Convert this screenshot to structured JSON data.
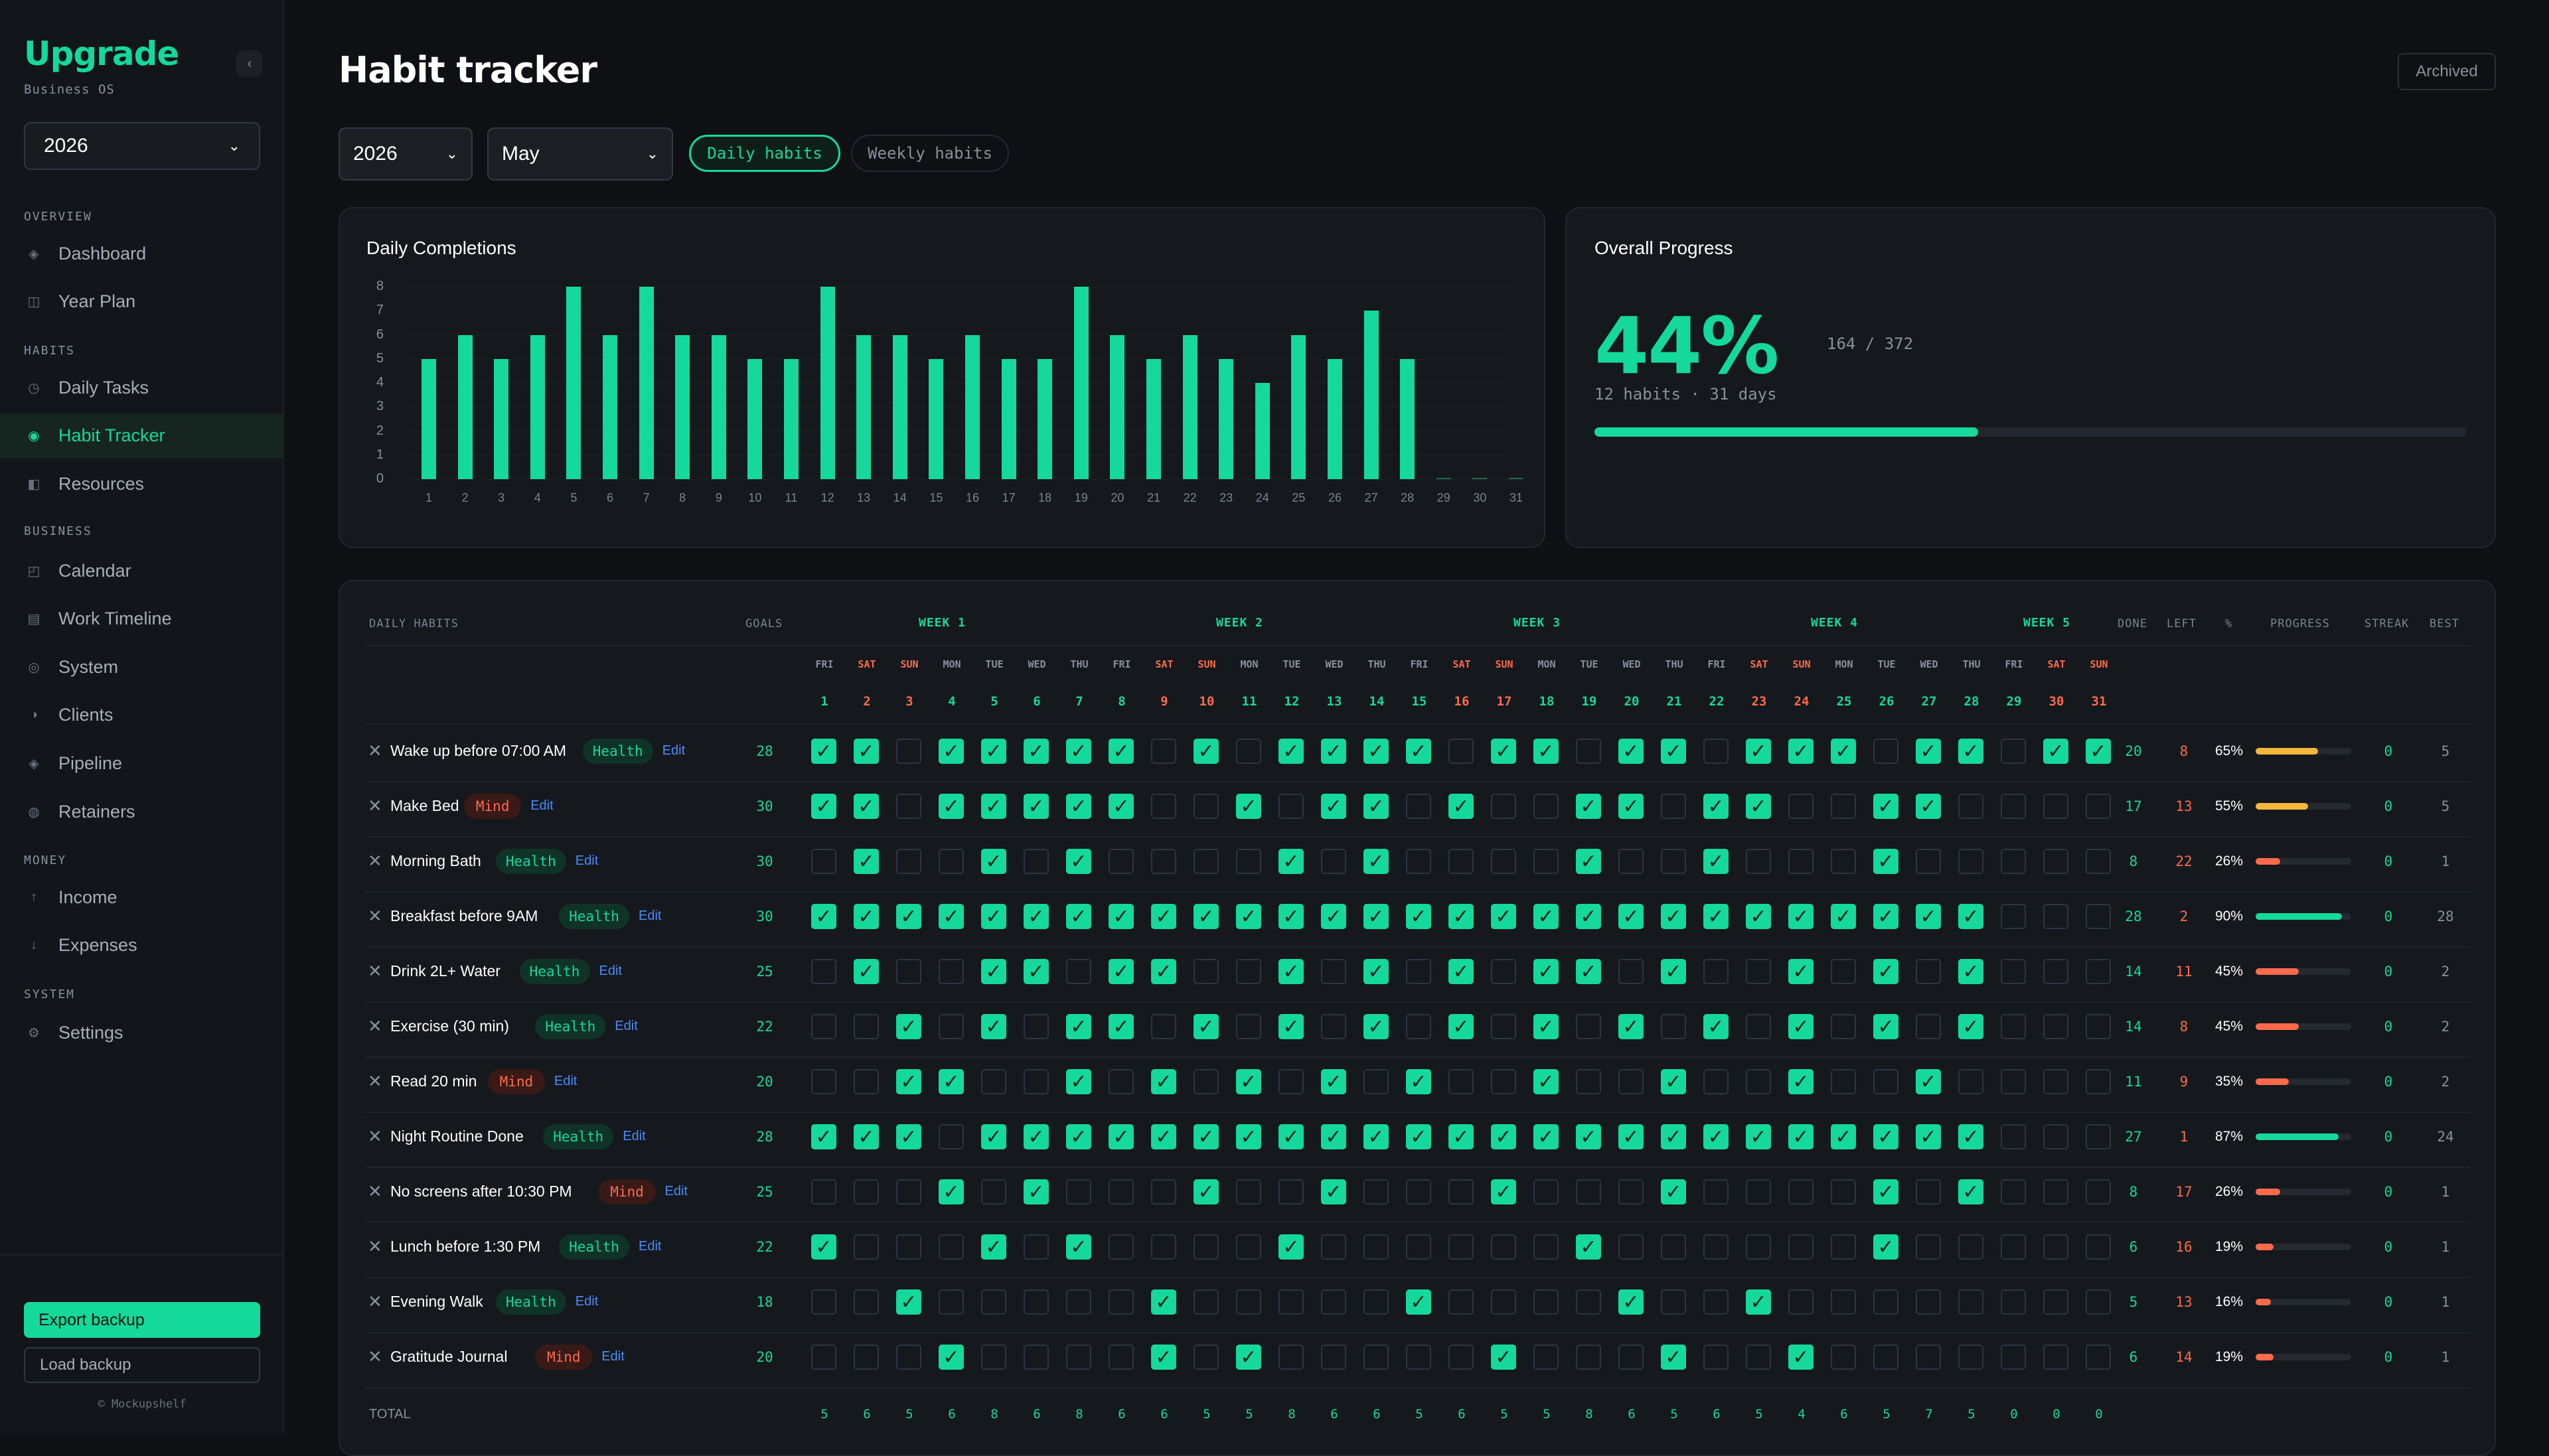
{
  "sidebar": {
    "logo": "Upgrade",
    "subtitle": "Business OS",
    "year": "2026",
    "sections": [
      {
        "title": "OVERVIEW",
        "items": [
          {
            "label": "Dashboard",
            "icon": "diamond-icon"
          },
          {
            "label": "Year Plan",
            "icon": "calendar-grid-icon"
          }
        ]
      },
      {
        "title": "HABITS",
        "items": [
          {
            "label": "Daily Tasks",
            "icon": "clock-icon"
          },
          {
            "label": "Habit Tracker",
            "icon": "target-icon",
            "active": true
          },
          {
            "label": "Resources",
            "icon": "book-icon"
          }
        ]
      },
      {
        "title": "BUSINESS",
        "items": [
          {
            "label": "Calendar",
            "icon": "calendar-icon"
          },
          {
            "label": "Work Timeline",
            "icon": "list-icon"
          },
          {
            "label": "System",
            "icon": "system-icon"
          },
          {
            "label": "Clients",
            "icon": "half-circle-icon"
          },
          {
            "label": "Pipeline",
            "icon": "pipeline-icon"
          },
          {
            "label": "Retainers",
            "icon": "retainer-icon"
          }
        ]
      },
      {
        "title": "MONEY",
        "items": [
          {
            "label": "Income",
            "icon": "arrow-up-icon"
          },
          {
            "label": "Expenses",
            "icon": "arrow-down-icon"
          }
        ]
      },
      {
        "title": "SYSTEM",
        "items": [
          {
            "label": "Settings",
            "icon": "gear-icon"
          }
        ]
      }
    ],
    "export_label": "Export backup",
    "load_label": "Load backup",
    "copyright": "© Mockupshelf"
  },
  "header": {
    "title": "Habit tracker",
    "archived_label": "Archived",
    "year": "2026",
    "month": "May",
    "tab_daily": "Daily habits",
    "tab_weekly": "Weekly habits"
  },
  "chart_title": "Daily Completions",
  "chart_data": {
    "type": "bar",
    "title": "Daily Completions",
    "categories": [
      "1",
      "2",
      "3",
      "4",
      "5",
      "6",
      "7",
      "8",
      "9",
      "10",
      "11",
      "12",
      "13",
      "14",
      "15",
      "16",
      "17",
      "18",
      "19",
      "20",
      "21",
      "22",
      "23",
      "24",
      "25",
      "26",
      "27",
      "28",
      "29",
      "30",
      "31"
    ],
    "values": [
      5,
      6,
      5,
      6,
      8,
      6,
      8,
      6,
      6,
      5,
      5,
      8,
      6,
      6,
      5,
      6,
      5,
      5,
      8,
      6,
      5,
      6,
      5,
      4,
      6,
      5,
      7,
      5,
      0,
      0,
      0
    ],
    "ylim": [
      0,
      8
    ],
    "yticks": [
      "0",
      "1",
      "2",
      "3",
      "4",
      "5",
      "6",
      "7",
      "8"
    ],
    "grid": true
  },
  "progress": {
    "title": "Overall Progress",
    "percent_label": "44%",
    "percent_value": 0.44,
    "count": "164 / 372",
    "subtitle": "12 habits · 31 days"
  },
  "table": {
    "headers": {
      "habits": "DAILY HABITS",
      "goals": "GOALS",
      "done": "DONE",
      "left": "LEFT",
      "pct": "%",
      "progress": "PROGRESS",
      "streak": "STREAK",
      "best": "BEST"
    },
    "weeks": [
      "WEEK 1",
      "WEEK 2",
      "WEEK 3",
      "WEEK 4",
      "WEEK 5"
    ],
    "dow": [
      "FRI",
      "SAT",
      "SUN",
      "MON",
      "TUE",
      "WED",
      "THU",
      "FRI",
      "SAT",
      "SUN",
      "MON",
      "TUE",
      "WED",
      "THU",
      "FRI",
      "SAT",
      "SUN",
      "MON",
      "TUE",
      "WED",
      "THU",
      "FRI",
      "SAT",
      "SUN",
      "MON",
      "TUE",
      "WED",
      "THU",
      "FRI",
      "SAT",
      "SUN"
    ],
    "days": [
      "1",
      "2",
      "3",
      "4",
      "5",
      "6",
      "7",
      "8",
      "9",
      "10",
      "11",
      "12",
      "13",
      "14",
      "15",
      "16",
      "17",
      "18",
      "19",
      "20",
      "21",
      "22",
      "23",
      "24",
      "25",
      "26",
      "27",
      "28",
      "29",
      "30",
      "31"
    ],
    "edit_label": "Edit",
    "rows": [
      {
        "name": "Wake up before 07:00 AM",
        "tag": "Health",
        "goal": "28",
        "checks": "1101111101011110110110111011011000",
        "done": "20",
        "left": "8",
        "pct": "65%",
        "pct_value": 0.65,
        "bar_color": "#f5b73a",
        "streak": "0",
        "best": "5"
      },
      {
        "name": "Make Bed",
        "tag": "Mind",
        "goal": "30",
        "checks": "1101111100101101001101100110000000",
        "done": "17",
        "left": "13",
        "pct": "55%",
        "pct_value": 0.55,
        "bar_color": "#f5b73a",
        "streak": "0",
        "best": "5"
      },
      {
        "name": "Morning Bath",
        "tag": "Health",
        "goal": "30",
        "checks": "0100101000010100001001000100000000",
        "done": "8",
        "left": "22",
        "pct": "26%",
        "pct_value": 0.26,
        "bar_color": "#ff6b4a",
        "streak": "0",
        "best": "1"
      },
      {
        "name": "Breakfast before 9AM",
        "tag": "Health",
        "goal": "30",
        "checks": "1111111111111111111111111111000000",
        "done": "28",
        "left": "2",
        "pct": "90%",
        "pct_value": 0.9,
        "bar_color": "#14d99a",
        "streak": "0",
        "best": "28"
      },
      {
        "name": "Drink 2L+ Water",
        "tag": "Health",
        "goal": "25",
        "checks": "0100110110010101011010010101000000",
        "done": "14",
        "left": "11",
        "pct": "45%",
        "pct_value": 0.45,
        "bar_color": "#ff6b4a",
        "streak": "0",
        "best": "2"
      },
      {
        "name": "Exercise (30 min)",
        "tag": "Health",
        "goal": "22",
        "checks": "0010101101010101010101010101000000",
        "done": "14",
        "left": "8",
        "pct": "45%",
        "pct_value": 0.45,
        "bar_color": "#ff6b4a",
        "streak": "0",
        "best": "2"
      },
      {
        "name": "Read 20 min",
        "tag": "Mind",
        "goal": "20",
        "checks": "0011001010101010010010010010000000",
        "done": "11",
        "left": "9",
        "pct": "35%",
        "pct_value": 0.35,
        "bar_color": "#ff6b4a",
        "streak": "0",
        "best": "2"
      },
      {
        "name": "Night Routine Done",
        "tag": "Health",
        "goal": "28",
        "checks": "1110111111111111111111111111000000",
        "done": "27",
        "left": "1",
        "pct": "87%",
        "pct_value": 0.87,
        "bar_color": "#14d99a",
        "streak": "0",
        "best": "24"
      },
      {
        "name": "No screens after 10:30 PM",
        "tag": "Mind",
        "goal": "25",
        "checks": "0001010001001000100010000101000000",
        "done": "8",
        "left": "17",
        "pct": "26%",
        "pct_value": 0.26,
        "bar_color": "#ff6b4a",
        "streak": "0",
        "best": "1"
      },
      {
        "name": "Lunch before 1:30 PM",
        "tag": "Health",
        "goal": "22",
        "checks": "1000101000010000001000000100000000",
        "done": "6",
        "left": "16",
        "pct": "19%",
        "pct_value": 0.19,
        "bar_color": "#ff6b4a",
        "streak": "0",
        "best": "1"
      },
      {
        "name": "Evening Walk",
        "tag": "Health",
        "goal": "18",
        "checks": "0010000010000010000100100000000000",
        "done": "5",
        "left": "13",
        "pct": "16%",
        "pct_value": 0.16,
        "bar_color": "#ff6b4a",
        "streak": "0",
        "best": "1"
      },
      {
        "name": "Gratitude Journal",
        "tag": "Mind",
        "goal": "20",
        "checks": "0001000010100000100010010000000000",
        "done": "6",
        "left": "14",
        "pct": "19%",
        "pct_value": 0.19,
        "bar_color": "#ff6b4a",
        "streak": "0",
        "best": "1"
      }
    ],
    "total_label": "TOTAL",
    "totals": [
      "5",
      "6",
      "5",
      "6",
      "8",
      "6",
      "8",
      "6",
      "6",
      "5",
      "5",
      "8",
      "6",
      "6",
      "5",
      "6",
      "5",
      "5",
      "8",
      "6",
      "5",
      "6",
      "5",
      "4",
      "6",
      "5",
      "7",
      "5",
      "0",
      "0",
      "0"
    ]
  }
}
